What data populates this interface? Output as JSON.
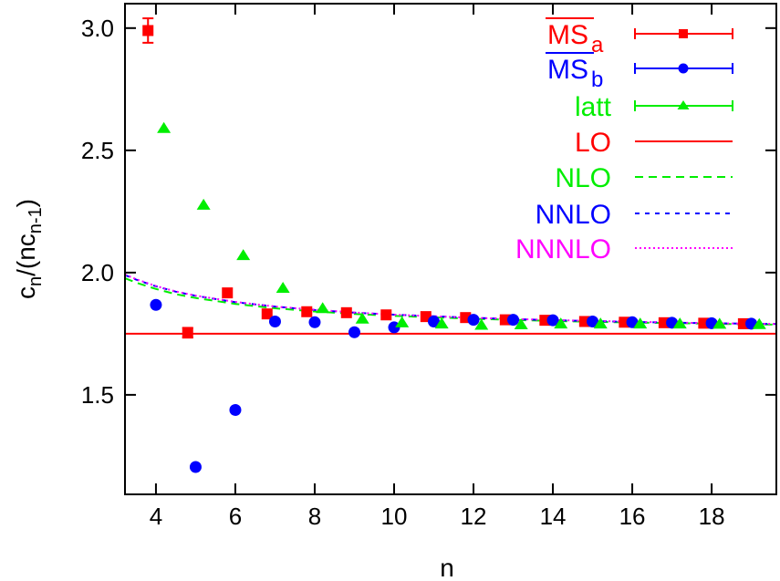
{
  "chart_data": {
    "type": "scatter",
    "xlabel": "n",
    "ylabel": {
      "base": "c",
      "sub1": "n",
      "mid": "/(nc",
      "sub2": "n-1",
      "end": ")"
    },
    "xlim": [
      3.22,
      19.63
    ],
    "ylim": [
      1.093,
      3.1
    ],
    "xticks": [
      4,
      6,
      8,
      10,
      12,
      14,
      16,
      18
    ],
    "yticks": [
      1.5,
      2.0,
      2.5,
      3.0
    ],
    "ytick_labels": [
      "1.5",
      "2.0",
      "2.5",
      "3.0"
    ],
    "grid": false,
    "legend_position": "top-right",
    "series": [
      {
        "name": "MS",
        "name_sub": "a",
        "name_overline": true,
        "color": "#ff0000",
        "marker": "square",
        "x": [
          3.8,
          4.8,
          5.8,
          6.8,
          7.8,
          8.8,
          9.8,
          10.8,
          11.8,
          12.8,
          13.8,
          14.8,
          15.8,
          16.8,
          17.8,
          18.8
        ],
        "y": [
          2.99,
          1.754,
          1.917,
          1.831,
          1.84,
          1.836,
          1.827,
          1.82,
          1.816,
          1.807,
          1.805,
          1.8,
          1.797,
          1.795,
          1.793,
          1.791
        ],
        "err": [
          0.05,
          0.02,
          0.01,
          0.01,
          0.01,
          0.01,
          0.01,
          0.005,
          0.005,
          0.005,
          0.005,
          0.005,
          0.005,
          0.005,
          0.005,
          0.005
        ]
      },
      {
        "name": "MS",
        "name_sub": "b",
        "name_overline": true,
        "color": "#0000ff",
        "marker": "circle",
        "x": [
          4,
          5,
          6,
          7,
          8,
          9,
          10,
          11,
          12,
          13,
          14,
          15,
          16,
          17,
          18,
          19
        ],
        "y": [
          1.868,
          1.205,
          1.438,
          1.8,
          1.797,
          1.756,
          1.776,
          1.8,
          1.807,
          1.807,
          1.805,
          1.8,
          1.797,
          1.795,
          1.793,
          1.791
        ]
      },
      {
        "name": "latt",
        "color": "#00ee00",
        "marker": "triangle",
        "x": [
          4.2,
          5.2,
          6.2,
          7.2,
          8.2,
          9.2,
          10.2,
          11.2,
          12.2,
          13.2,
          14.2,
          15.2,
          16.2,
          17.2,
          18.2,
          19.2
        ],
        "y": [
          2.59,
          2.276,
          2.07,
          1.936,
          1.853,
          1.81,
          1.795,
          1.79,
          1.785,
          1.787,
          1.79,
          1.79,
          1.79,
          1.79,
          1.789,
          1.788
        ]
      },
      {
        "name": "LO",
        "color": "#ff0000",
        "line": "solid",
        "x": [
          3.22,
          19.63
        ],
        "y": [
          1.75,
          1.75
        ]
      },
      {
        "name": "NLO",
        "color": "#00ee00",
        "line": "dashed",
        "x": [
          3.22,
          3.5,
          4,
          4.5,
          5,
          6,
          7,
          8,
          9,
          10,
          12,
          14,
          16,
          18,
          19.63
        ],
        "y": [
          1.977,
          1.959,
          1.933,
          1.912,
          1.896,
          1.872,
          1.854,
          1.841,
          1.831,
          1.823,
          1.811,
          1.802,
          1.796,
          1.791,
          1.787
        ]
      },
      {
        "name": "NNLO",
        "color": "#0000ff",
        "line": "short-dashed",
        "x": [
          3.22,
          3.5,
          4,
          4.5,
          5,
          6,
          7,
          8,
          9,
          10,
          12,
          14,
          16,
          18,
          19.63
        ],
        "y": [
          1.99,
          1.971,
          1.944,
          1.922,
          1.905,
          1.879,
          1.861,
          1.847,
          1.836,
          1.828,
          1.815,
          1.805,
          1.798,
          1.793,
          1.79
        ]
      },
      {
        "name": "NNNLO",
        "color": "#ff00ff",
        "line": "dotted",
        "x": [
          3.22,
          3.5,
          4,
          4.5,
          5,
          6,
          7,
          8,
          9,
          10,
          12,
          14,
          16,
          18,
          19.63
        ],
        "y": [
          1.992,
          1.973,
          1.945,
          1.923,
          1.906,
          1.88,
          1.861,
          1.848,
          1.837,
          1.828,
          1.815,
          1.806,
          1.799,
          1.793,
          1.79
        ]
      }
    ]
  }
}
